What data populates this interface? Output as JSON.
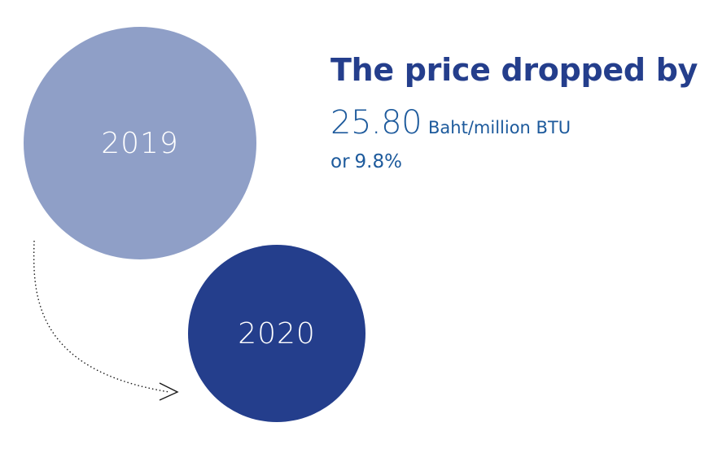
{
  "circles": {
    "year_from": "2019",
    "year_to": "2020",
    "color_from": "#8f9fc7",
    "color_to": "#243e8c"
  },
  "summary": {
    "headline": "The price dropped by",
    "amount": "25.80",
    "unit": "Baht/million BTU",
    "connector": "or",
    "percent": "9.8%"
  },
  "colors": {
    "headline": "#243e8c",
    "value_text": "#1d5a9c"
  }
}
